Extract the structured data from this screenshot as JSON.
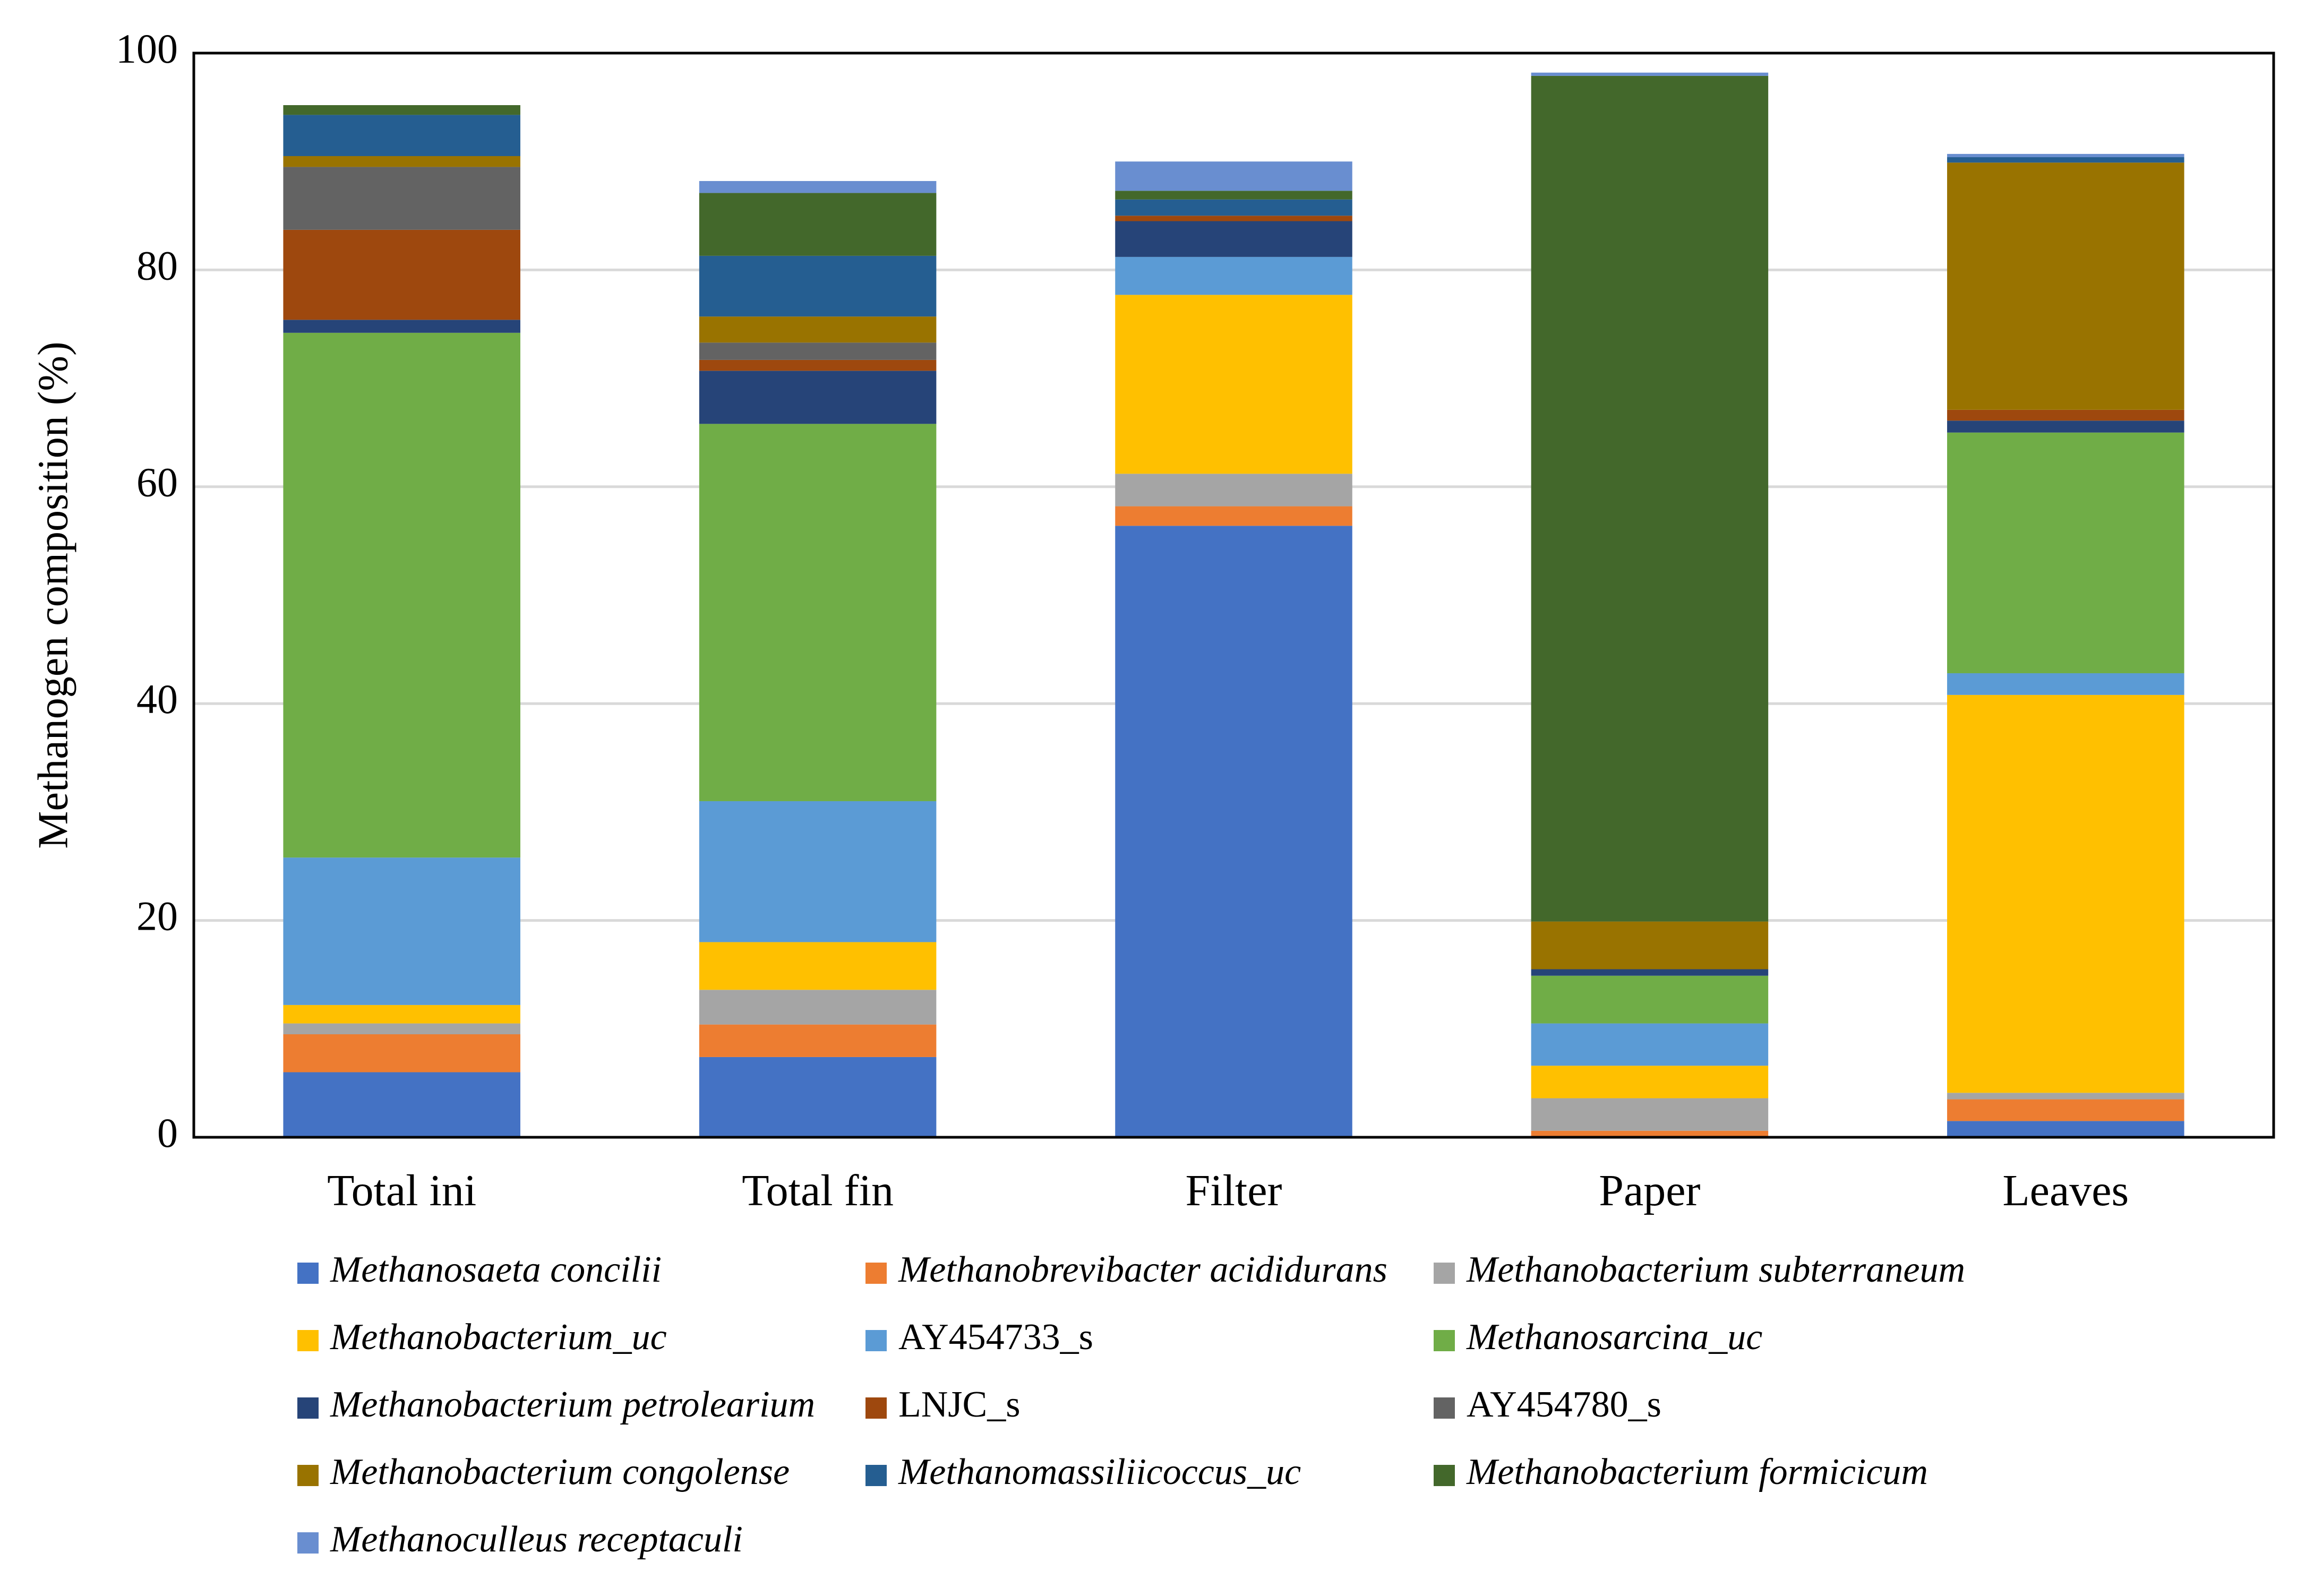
{
  "chart_data": {
    "type": "bar",
    "stacked": true,
    "title": "",
    "xlabel": "",
    "ylabel": "Methanogen composition (%)",
    "ylim": [
      0,
      100
    ],
    "yticks": [
      0,
      20,
      40,
      60,
      80,
      100
    ],
    "grid": true,
    "legend_position": "bottom",
    "categories": [
      "Total ini",
      "Total fin",
      "Filter",
      "Paper",
      "Leaves"
    ],
    "series": [
      {
        "name": "Methanosaeta concilii",
        "italic": true,
        "color": "#4472C4",
        "values": [
          6.0,
          7.4,
          56.4,
          0.1,
          1.5
        ]
      },
      {
        "name": "Methanobrevibacter acididurans",
        "italic": true,
        "color": "#ED7D31",
        "values": [
          3.5,
          3.0,
          1.8,
          0.5,
          2.0
        ]
      },
      {
        "name": "Methanobacterium subterraneum",
        "italic": true,
        "color": "#A5A5A5",
        "values": [
          1.0,
          3.2,
          3.0,
          3.0,
          0.6
        ]
      },
      {
        "name": "Methanobacterium_uc",
        "italic": true,
        "color": "#FFC000",
        "values": [
          1.7,
          4.4,
          16.5,
          3.0,
          36.7
        ]
      },
      {
        "name": "AY454733_s",
        "italic": false,
        "color": "#5B9BD5",
        "values": [
          13.6,
          13.0,
          3.5,
          3.9,
          2.0
        ]
      },
      {
        "name": "Methanosarcina_uc",
        "italic": true,
        "color": "#70AD47",
        "values": [
          48.4,
          34.8,
          0.0,
          4.4,
          22.2
        ]
      },
      {
        "name": "Methanobacterium petrolearium",
        "italic": true,
        "color": "#264478",
        "values": [
          1.2,
          4.9,
          3.3,
          0.6,
          1.1
        ]
      },
      {
        "name": "LNJC_s",
        "italic": false,
        "color": "#9E480E",
        "values": [
          8.3,
          1.0,
          0.5,
          0.0,
          1.0
        ]
      },
      {
        "name": "AY454780_s",
        "italic": false,
        "color": "#636363",
        "values": [
          5.8,
          1.6,
          0.0,
          0.0,
          0.0
        ]
      },
      {
        "name": "Methanobacterium congolense",
        "italic": true,
        "color": "#997300",
        "values": [
          1.0,
          2.4,
          0.0,
          4.4,
          22.8
        ]
      },
      {
        "name": "Methanomassiliicoccus_uc",
        "italic": true,
        "color": "#255E91",
        "values": [
          3.8,
          5.6,
          1.5,
          0.0,
          0.5
        ]
      },
      {
        "name": "Methanobacterium formicicum",
        "italic": true,
        "color": "#43682B",
        "values": [
          0.9,
          5.8,
          0.8,
          78.0,
          0.0
        ]
      },
      {
        "name": "Methanoculleus receptaculi",
        "italic": true,
        "color": "#698ED0",
        "values": [
          0.0,
          1.1,
          2.7,
          0.3,
          0.3
        ]
      }
    ]
  }
}
